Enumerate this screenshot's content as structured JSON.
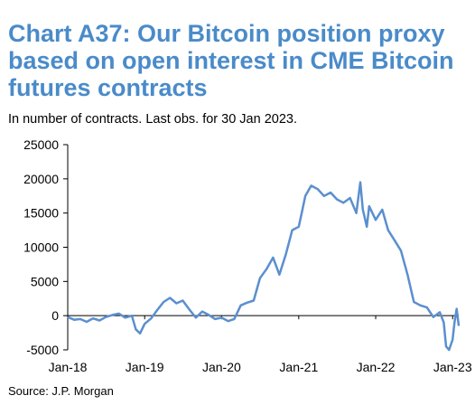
{
  "header": {
    "title": "Chart A37: Our Bitcoin position proxy based on open interest in CME Bitcoin futures contracts",
    "subtitle": "In number of contracts. Last obs. for 30 Jan 2023."
  },
  "footer": {
    "source": "Source: J.P. Morgan"
  },
  "colors": {
    "series": "#5b8fcf",
    "title": "#4a8bc9",
    "axis": "#000000"
  },
  "chart_data": {
    "type": "line",
    "title": "Chart A37: Our Bitcoin position proxy based on open interest in CME Bitcoin futures contracts",
    "subtitle": "In number of contracts. Last obs. for 30 Jan 2023.",
    "xlabel": "",
    "ylabel": "",
    "ylim": [
      -5000,
      25000
    ],
    "yticks": [
      -5000,
      0,
      5000,
      10000,
      15000,
      20000,
      25000
    ],
    "ytick_labels": [
      "-5000",
      "0",
      "5000",
      "10000",
      "15000",
      "20000",
      "25000"
    ],
    "xlim": [
      "2018-01-01",
      "2023-01-30"
    ],
    "xtick_labels": [
      "Jan-18",
      "Jan-19",
      "Jan-20",
      "Jan-21",
      "Jan-22",
      "Jan-23"
    ],
    "xticks": [
      "2018-01-01",
      "2019-01-01",
      "2020-01-01",
      "2021-01-01",
      "2022-01-01",
      "2023-01-01"
    ],
    "grid": false,
    "legend": "none",
    "series": [
      {
        "name": "",
        "x": [
          "2018-01-01",
          "2018-02-01",
          "2018-03-01",
          "2018-04-01",
          "2018-05-01",
          "2018-06-01",
          "2018-07-01",
          "2018-08-01",
          "2018-09-01",
          "2018-10-01",
          "2018-11-01",
          "2018-11-20",
          "2018-12-10",
          "2019-01-01",
          "2019-02-01",
          "2019-03-01",
          "2019-04-01",
          "2019-05-01",
          "2019-06-01",
          "2019-07-01",
          "2019-08-01",
          "2019-09-01",
          "2019-10-01",
          "2019-11-01",
          "2019-12-01",
          "2020-01-01",
          "2020-02-01",
          "2020-03-01",
          "2020-04-01",
          "2020-05-01",
          "2020-06-01",
          "2020-07-01",
          "2020-08-01",
          "2020-09-01",
          "2020-10-01",
          "2020-11-01",
          "2020-12-01",
          "2021-01-01",
          "2021-01-15",
          "2021-02-01",
          "2021-03-01",
          "2021-04-01",
          "2021-05-01",
          "2021-06-01",
          "2021-07-01",
          "2021-08-01",
          "2021-09-01",
          "2021-10-01",
          "2021-10-20",
          "2021-11-01",
          "2021-11-20",
          "2021-12-01",
          "2022-01-01",
          "2022-02-01",
          "2022-03-01",
          "2022-04-01",
          "2022-05-01",
          "2022-06-01",
          "2022-07-01",
          "2022-08-01",
          "2022-09-01",
          "2022-10-01",
          "2022-11-01",
          "2022-11-20",
          "2022-12-01",
          "2022-12-15",
          "2023-01-01",
          "2023-01-10",
          "2023-01-20",
          "2023-01-30"
        ],
        "values": [
          -200,
          -600,
          -500,
          -900,
          -400,
          -700,
          -200,
          100,
          300,
          -300,
          0,
          -2000,
          -2600,
          -1200,
          -400,
          800,
          2000,
          2600,
          1800,
          2200,
          900,
          -300,
          600,
          100,
          -500,
          -300,
          -800,
          -500,
          1500,
          1900,
          2200,
          5500,
          6800,
          8500,
          6000,
          9000,
          12500,
          13000,
          15000,
          17500,
          19000,
          18500,
          17500,
          18000,
          17000,
          16500,
          17200,
          15000,
          19500,
          15500,
          13000,
          16000,
          14000,
          15500,
          12500,
          11000,
          9500,
          6000,
          2000,
          1500,
          1200,
          -200,
          500,
          -1000,
          -4500,
          -5000,
          -3500,
          -1000,
          1000,
          -1500
        ]
      }
    ]
  }
}
